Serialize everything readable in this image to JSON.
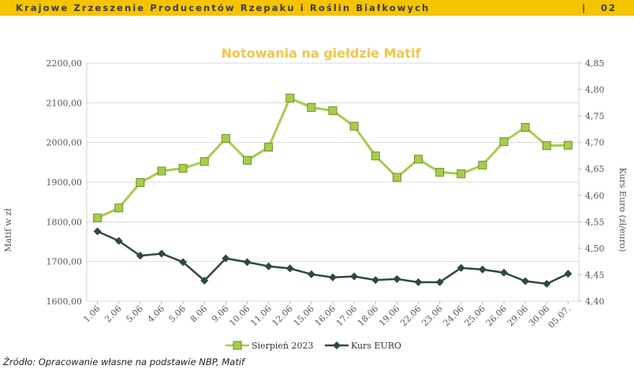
{
  "header": {
    "title": "Krajowe Zrzeszenie Producentów Rzepaku i Roślin Białkowych",
    "separator": "|",
    "page": "02"
  },
  "source_note": "Źródło: Opracowanie własne na podstawie NBP, Matif",
  "chart_data": {
    "type": "line",
    "title": "Notowania na giełdzie Matif",
    "ylabel": "Matif w zł",
    "y2label": "Kurs Euro (zł/euro)",
    "ylim": [
      1600,
      2200
    ],
    "y2lim": [
      4.4,
      4.85
    ],
    "yticks": [
      "1600,00",
      "1700,00",
      "1800,00",
      "1900,00",
      "2000,00",
      "2100,00",
      "2200,00"
    ],
    "y2ticks": [
      "4,40",
      "4,45",
      "4,50",
      "4,55",
      "4,60",
      "4,65",
      "4,70",
      "4,75",
      "4,80",
      "4,85"
    ],
    "categories": [
      "1.06",
      "2.06",
      "5.06",
      "4.06",
      "5.06",
      "8.06",
      "9.06",
      "10.06",
      "11.06",
      "12.06",
      "15.06",
      "16.06",
      "17.06",
      "18.06",
      "19.06",
      "22.06",
      "23.06",
      "24.06",
      "25.06",
      "26.06",
      "29.06",
      "30.06",
      "05.07."
    ],
    "series": [
      {
        "name": "Sierpień 2023",
        "axis": "left",
        "color": "#a8cc4c",
        "marker": "square",
        "values": [
          1810,
          1835,
          1899,
          1928,
          1935,
          1952,
          2010,
          1955,
          1988,
          2112,
          2088,
          2080,
          2041,
          1966,
          1912,
          1958,
          1925,
          1921,
          1943,
          2002,
          2038,
          1992,
          1993
        ]
      },
      {
        "name": "Kurs EURO",
        "axis": "right",
        "color": "#2e4a3a",
        "marker": "diamond",
        "values": [
          4.532,
          4.514,
          4.486,
          4.49,
          4.474,
          4.439,
          4.481,
          4.474,
          4.466,
          4.462,
          4.451,
          4.445,
          4.447,
          4.44,
          4.442,
          4.436,
          4.436,
          4.463,
          4.46,
          4.454,
          4.438,
          4.433,
          4.452
        ]
      }
    ],
    "grid": true,
    "legend": "bottom"
  }
}
